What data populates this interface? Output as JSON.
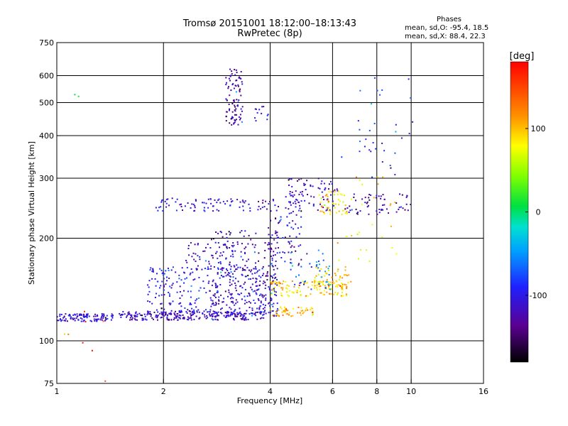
{
  "chart_data": {
    "type": "scatter",
    "title": "Tromsø 20151001 18:12:00–18:13:43",
    "subtitle": "RwPretec (8p)",
    "xlabel": "Frequency [MHz]",
    "ylabel": "Stationary phase Virtual Height [km]",
    "xscale": "log",
    "yscale": "log",
    "xlim": [
      1,
      16
    ],
    "ylim": [
      75,
      750
    ],
    "xticks": [
      1,
      2,
      4,
      6,
      8,
      10,
      16
    ],
    "xtick_labels": [
      "1",
      "2",
      "4",
      "6",
      "8",
      "10",
      "16"
    ],
    "yticks": [
      75,
      100,
      200,
      300,
      400,
      500,
      600,
      750
    ],
    "ytick_labels": [
      "75",
      "100",
      "200",
      "300",
      "400",
      "500",
      "600",
      "750"
    ],
    "grid": true,
    "colorbar": {
      "title": "[deg]",
      "range": [
        -180,
        180
      ],
      "ticks": [
        100,
        0,
        -100
      ],
      "tick_labels": [
        "100",
        "0",
        "-100"
      ]
    },
    "phase_stats": {
      "header": "Phases",
      "o_line": "mean, sd,O: -95.4, 18.5",
      "x_line": "mean, sd,X:  88.4, 22.3"
    },
    "groups": [
      {
        "x": [
          1.0,
          1.45
        ],
        "y": [
          114,
          120
        ],
        "phase": -110,
        "n": 110
      },
      {
        "x": [
          1.5,
          3.9
        ],
        "y": [
          115,
          122
        ],
        "phase": -115,
        "n": 260
      },
      {
        "x": [
          1.8,
          4.2
        ],
        "y": [
          118,
          165
        ],
        "phase": -105,
        "n": 340
      },
      {
        "x": [
          2.7,
          4.2
        ],
        "y": [
          125,
          215
        ],
        "phase": -125,
        "n": 170
      },
      {
        "x": [
          2.3,
          3.5
        ],
        "y": [
          160,
          195
        ],
        "phase": -110,
        "n": 70
      },
      {
        "x": [
          4.0,
          4.9
        ],
        "y": [
          165,
          265
        ],
        "phase": -110,
        "n": 80
      },
      {
        "x": [
          3.0,
          3.35
        ],
        "y": [
          430,
          630
        ],
        "phase": -125,
        "n": 90
      },
      {
        "x": [
          3.6,
          3.95
        ],
        "y": [
          440,
          490
        ],
        "phase": -110,
        "n": 12
      },
      {
        "x": [
          1.9,
          4.2
        ],
        "y": [
          240,
          262
        ],
        "phase": -105,
        "n": 90
      },
      {
        "x": [
          4.5,
          6.2
        ],
        "y": [
          240,
          300
        ],
        "phase": -120,
        "n": 80
      },
      {
        "x": [
          5.5,
          6.6
        ],
        "y": [
          235,
          275
        ],
        "phase": 85,
        "n": 50
      },
      {
        "x": [
          6.5,
          10.0
        ],
        "y": [
          235,
          270
        ],
        "phase": -125,
        "n": 60
      },
      {
        "x": [
          4.0,
          6.6
        ],
        "y": [
          135,
          150
        ],
        "phase": 95,
        "n": 110
      },
      {
        "x": [
          4.0,
          5.3
        ],
        "y": [
          118,
          126
        ],
        "phase": 100,
        "n": 50
      },
      {
        "x": [
          5.3,
          6.8
        ],
        "y": [
          140,
          165
        ],
        "phase": 90,
        "n": 60
      },
      {
        "x": [
          4.5,
          6.0
        ],
        "y": [
          140,
          185
        ],
        "phase": -60,
        "n": 40
      },
      {
        "x": [
          6.0,
          9.5
        ],
        "y": [
          170,
          330
        ],
        "phase": 90,
        "n": 30
      },
      {
        "x": [
          7.0,
          10.5
        ],
        "y": [
          300,
          450
        ],
        "phase": -100,
        "n": 20
      },
      {
        "x": [
          1.0,
          1.4
        ],
        "y": [
          75,
          140
        ],
        "phase": 150,
        "n": 8
      },
      {
        "x": [
          6.3,
          10.0
        ],
        "y": [
          300,
          600
        ],
        "phase": -60,
        "n": 14
      },
      {
        "x": [
          1.1,
          1.2
        ],
        "y": [
          520,
          540
        ],
        "phase": 20,
        "n": 2
      }
    ]
  }
}
